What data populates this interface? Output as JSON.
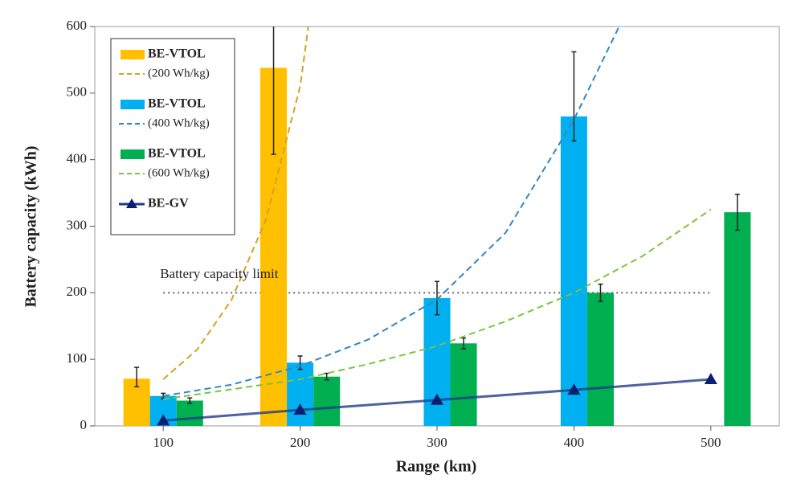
{
  "chart_data": {
    "type": "bar",
    "x_label": "Range (km)",
    "y_label": "Battery capacity (kWh)",
    "categories_x": [
      100,
      200,
      300,
      400,
      500
    ],
    "xlim": [
      50,
      550
    ],
    "xticks": [
      100,
      200,
      300,
      400,
      500
    ],
    "ylim": [
      0,
      600
    ],
    "yticks": [
      0,
      100,
      200,
      300,
      400,
      500,
      600
    ],
    "series": [
      {
        "kind": "bar",
        "name": "BE-VTOL",
        "color": "#ffc000",
        "values": [
          71,
          538,
          null,
          null,
          null
        ],
        "error_low": [
          12,
          130,
          null,
          null,
          null
        ],
        "error_high": [
          17,
          130,
          null,
          null,
          null
        ]
      },
      {
        "kind": "curve",
        "name": "(200 Wh/kg)",
        "color": "#d9a020",
        "x": [
          100,
          125,
          150,
          175,
          200,
          206
        ],
        "values": [
          70,
          115,
          190,
          310,
          510,
          600
        ]
      },
      {
        "kind": "bar",
        "name": "BE-VTOL",
        "color": "#00b0f0",
        "values": [
          45,
          95,
          192,
          465,
          null
        ],
        "error_low": [
          4,
          10,
          25,
          37,
          null
        ],
        "error_high": [
          4,
          10,
          25,
          97,
          null
        ]
      },
      {
        "kind": "curve",
        "name": "(400 Wh/kg)",
        "color": "#2e86c9",
        "x": [
          100,
          150,
          200,
          250,
          300,
          350,
          400,
          433
        ],
        "values": [
          45,
          62,
          90,
          130,
          190,
          290,
          460,
          600
        ]
      },
      {
        "kind": "bar",
        "name": "BE-VTOL",
        "color": "#00b050",
        "values": [
          38,
          74,
          124,
          200,
          321
        ],
        "error_low": [
          4,
          5,
          8,
          13,
          27
        ],
        "error_high": [
          4,
          5,
          8,
          13,
          27
        ]
      },
      {
        "kind": "curve",
        "name": "(600 Wh/kg)",
        "color": "#7cc440",
        "x": [
          100,
          150,
          200,
          250,
          300,
          350,
          400,
          450,
          500
        ],
        "values": [
          40,
          55,
          70,
          93,
          120,
          157,
          200,
          255,
          325
        ]
      },
      {
        "kind": "line",
        "name": "BE-GV",
        "color": "#1f3c88",
        "x": [
          100,
          200,
          300,
          400,
          500
        ],
        "values": [
          8,
          24,
          39,
          54,
          70
        ]
      }
    ],
    "reference_line": {
      "label": "Battery capacity limit",
      "value": 200,
      "x_range": [
        100,
        500
      ]
    }
  }
}
